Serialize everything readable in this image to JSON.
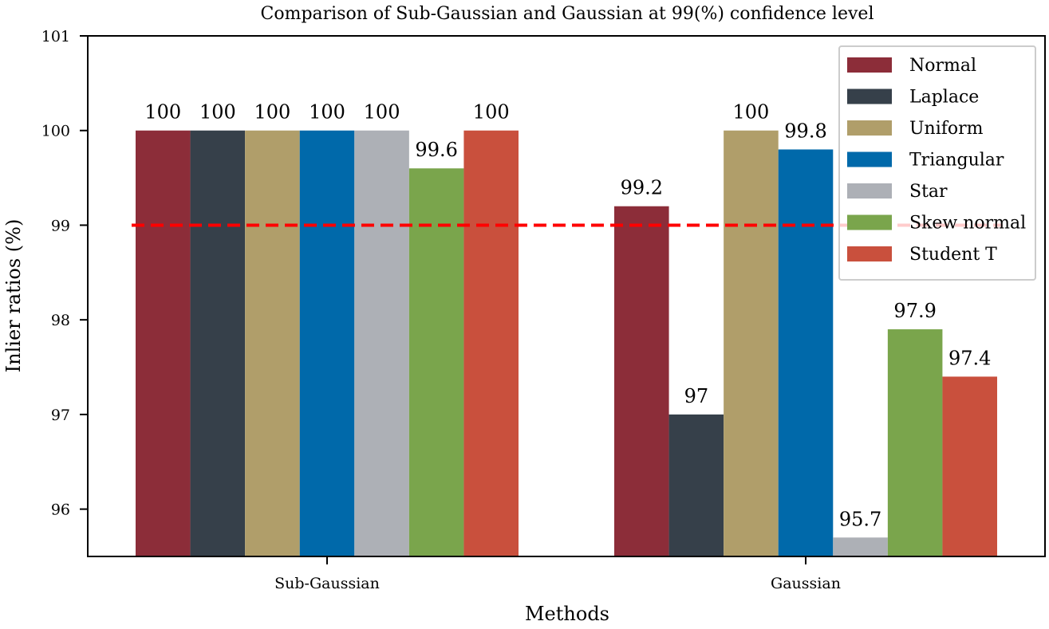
{
  "chart_data": {
    "type": "bar",
    "title": "Comparison of Sub-Gaussian and Gaussian at 99(%) confidence level",
    "xlabel": "Methods",
    "ylabel": "Inlier ratios (%)",
    "categories": [
      "Sub-Gaussian",
      "Gaussian"
    ],
    "ylim": [
      95.5,
      101
    ],
    "yticks": [
      96,
      97,
      98,
      99,
      100,
      101
    ],
    "series": [
      {
        "name": "Normal",
        "color": "#8c2d39",
        "values": [
          100,
          99.2
        ],
        "labels": [
          "100",
          "99.2"
        ]
      },
      {
        "name": "Laplace",
        "color": "#36404a",
        "values": [
          100,
          97
        ],
        "labels": [
          "100",
          "97"
        ]
      },
      {
        "name": "Uniform",
        "color": "#b09e6a",
        "values": [
          100,
          100
        ],
        "labels": [
          "100",
          "100"
        ]
      },
      {
        "name": "Triangular",
        "color": "#0069aa",
        "values": [
          100,
          99.8
        ],
        "labels": [
          "100",
          "99.8"
        ]
      },
      {
        "name": "Star",
        "color": "#adb0b6",
        "values": [
          100,
          95.7
        ],
        "labels": [
          "100",
          "95.7"
        ]
      },
      {
        "name": "Skew normal",
        "color": "#7aa54c",
        "values": [
          99.6,
          97.9
        ],
        "labels": [
          "99.6",
          "97.9"
        ]
      },
      {
        "name": "Student T",
        "color": "#c9503d",
        "values": [
          100,
          97.4
        ],
        "labels": [
          "100",
          "97.4"
        ]
      }
    ],
    "reference_line": {
      "y": 99,
      "color": "#ff0000",
      "style": "dashed"
    },
    "legend": {
      "position": "top-right"
    },
    "grid": false
  }
}
